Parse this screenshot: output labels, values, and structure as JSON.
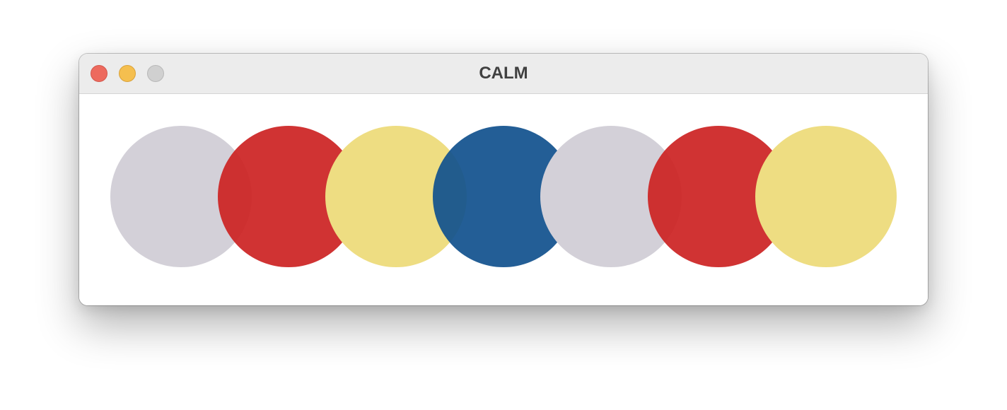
{
  "window": {
    "title": "CALM",
    "controls": {
      "close": "close-button",
      "minimize": "minimize-button",
      "zoom": "zoom-button"
    }
  },
  "palette": {
    "gray": "#d3d0d8",
    "red": "#cc2222",
    "yellow": "#eedd82",
    "blue": "#1c5490"
  },
  "circles": [
    {
      "color": "#d3d0d8",
      "opacity": 1.0
    },
    {
      "color": "#cc2222",
      "opacity": 0.92
    },
    {
      "color": "#eedd82",
      "opacity": 1.0
    },
    {
      "color": "#12528e",
      "opacity": 0.93
    },
    {
      "color": "#d3d0d8",
      "opacity": 1.0
    },
    {
      "color": "#cc2222",
      "opacity": 0.92
    },
    {
      "color": "#eedd82",
      "opacity": 1.0
    }
  ]
}
